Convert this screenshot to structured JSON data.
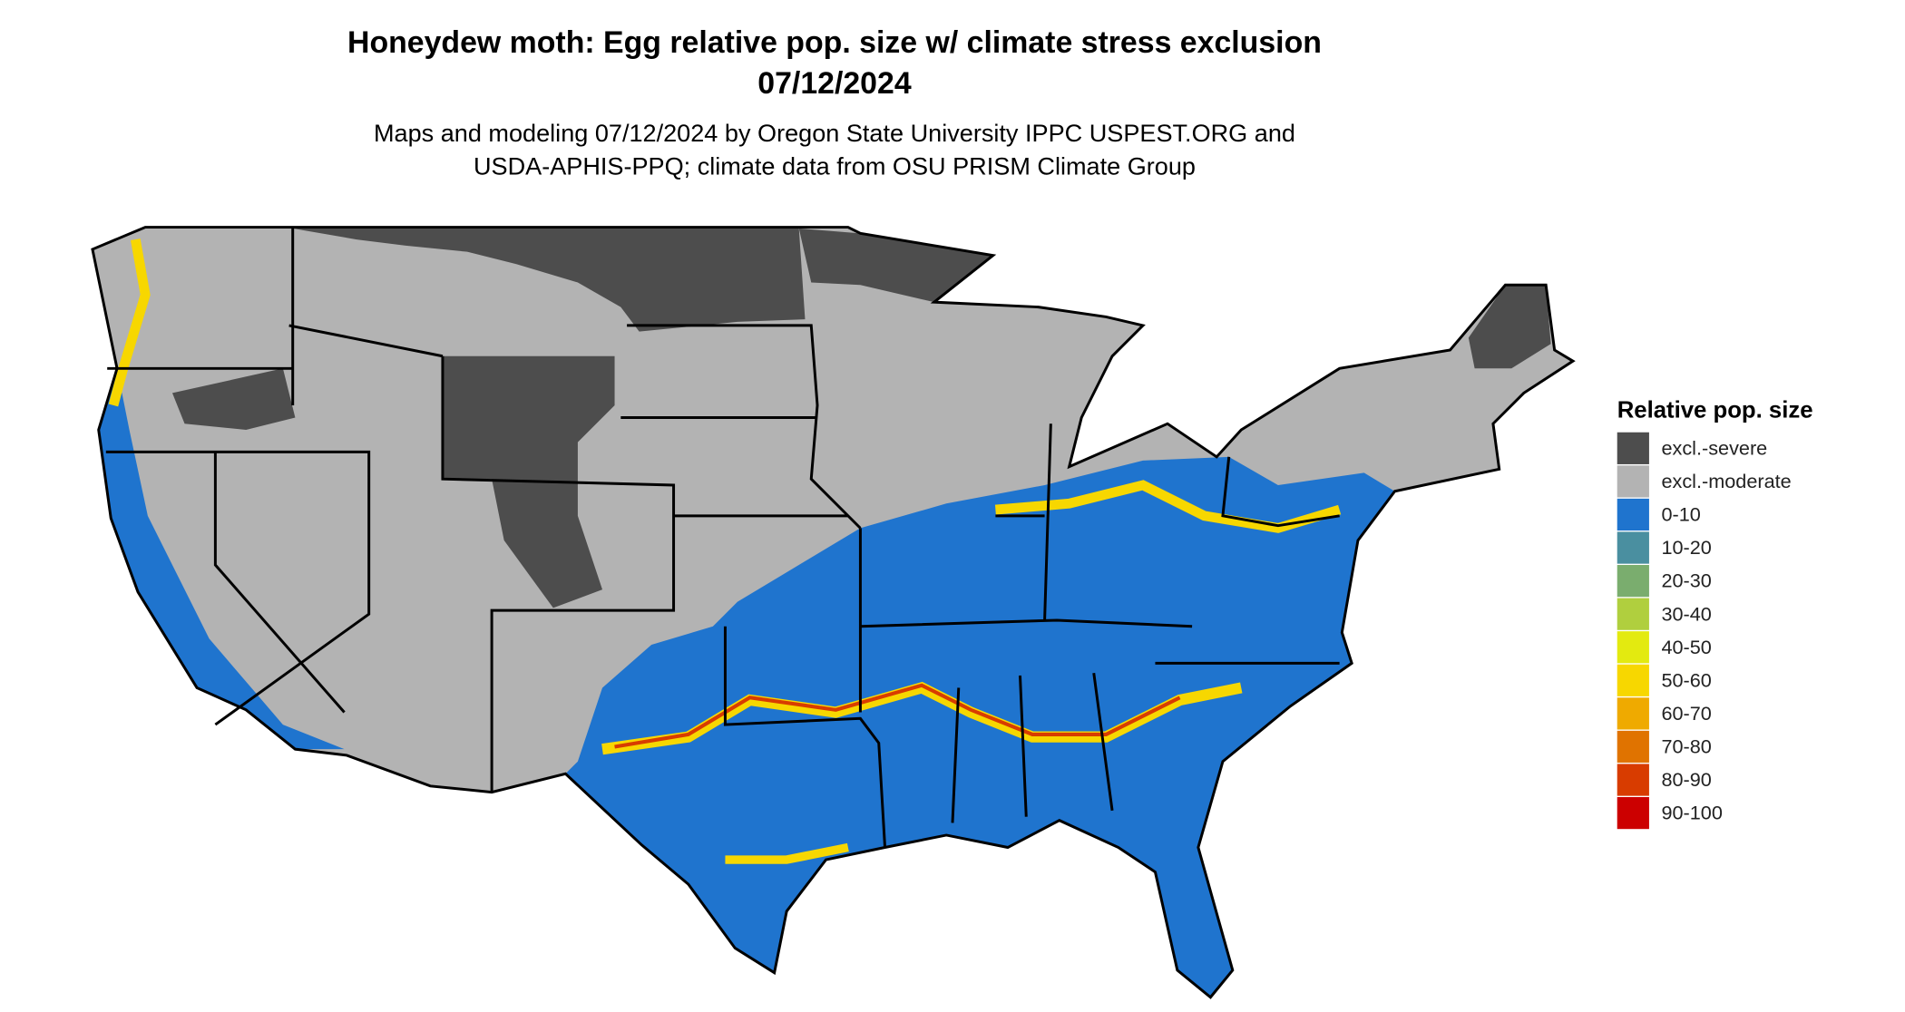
{
  "map": {
    "title": [
      "Honeydew moth: Egg relative pop. size w/ climate stress exclusion",
      "07/12/2024"
    ],
    "subtitle": [
      "Maps and modeling 07/12/2024 by Oregon State University IPPC USPEST.ORG and",
      "USDA-APHIS-PPQ; climate data from OSU PRISM Climate Group"
    ],
    "legend": {
      "title": "Relative pop. size",
      "items": [
        {
          "label": "excl.-severe",
          "color": "#4d4d4d"
        },
        {
          "label": "excl.-moderate",
          "color": "#b3b3b3"
        },
        {
          "label": "0-10",
          "color": "#1f74ce"
        },
        {
          "label": "10-20",
          "color": "#4a8fa0"
        },
        {
          "label": "20-30",
          "color": "#7aad6e"
        },
        {
          "label": "30-40",
          "color": "#b0cf3e"
        },
        {
          "label": "40-50",
          "color": "#e3ea10"
        },
        {
          "label": "50-60",
          "color": "#f7d700"
        },
        {
          "label": "60-70",
          "color": "#efaa00"
        },
        {
          "label": "70-80",
          "color": "#e07300"
        },
        {
          "label": "80-90",
          "color": "#d83c00"
        },
        {
          "label": "90-100",
          "color": "#cc0000"
        }
      ]
    }
  }
}
